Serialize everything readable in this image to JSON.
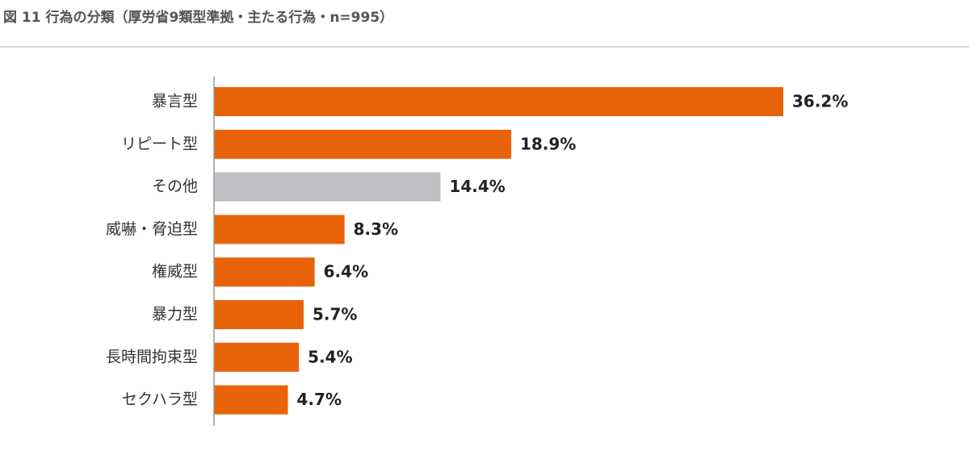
{
  "chart_data": {
    "type": "bar",
    "orientation": "horizontal",
    "title": "図 11  行為の分類（厚労省9類型準拠・主たる行為・n=995）",
    "categories": [
      "暴言型",
      "リピート型",
      "その他",
      "威嚇・脅迫型",
      "権威型",
      "暴力型",
      "長時間拘束型",
      "セクハラ型"
    ],
    "values": [
      36.2,
      18.9,
      14.4,
      8.3,
      6.4,
      5.7,
      5.4,
      4.7
    ],
    "value_labels": [
      "36.2%",
      "18.9%",
      "14.4%",
      "8.3%",
      "6.4%",
      "5.7%",
      "5.4%",
      "4.7%"
    ],
    "colors": [
      "#e8620a",
      "#e8620a",
      "#c0bec2",
      "#e8620a",
      "#e8620a",
      "#e8620a",
      "#e8620a",
      "#e8620a"
    ]
  }
}
